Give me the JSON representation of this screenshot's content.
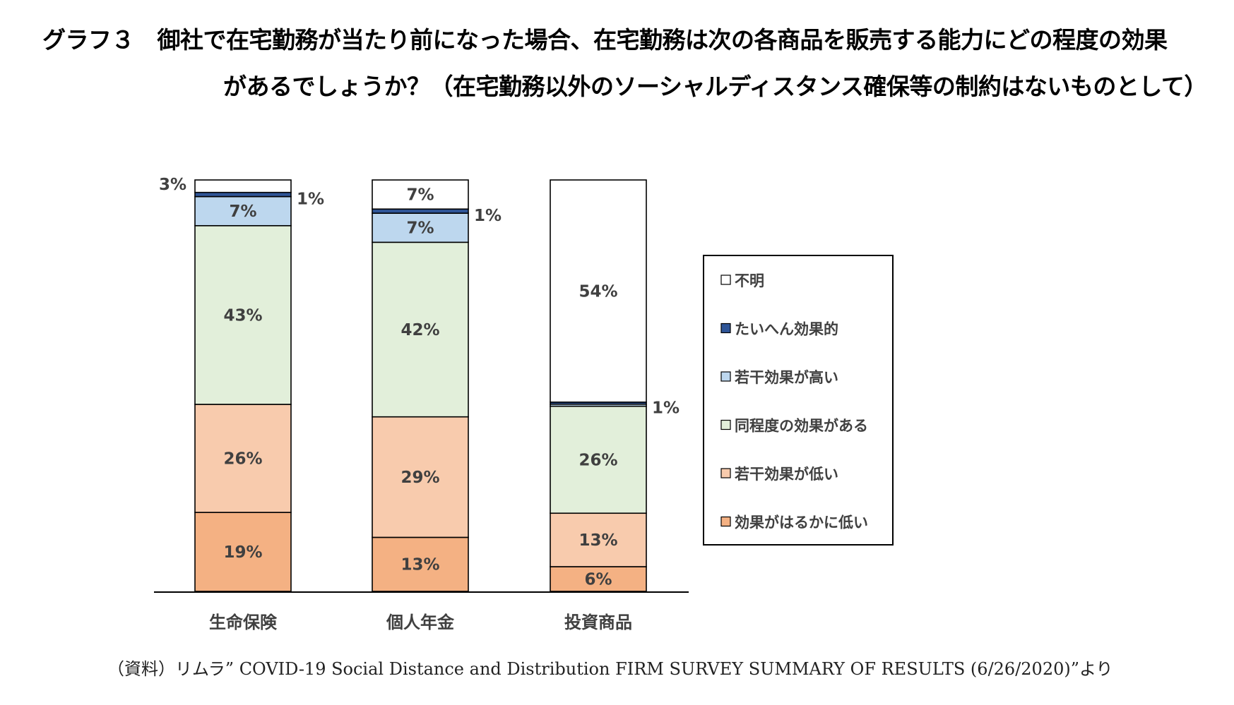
{
  "title_line1": "グラフ３　御社で在宅勤務が当たり前になった場合、在宅勤務は次の各商品を販売する能力にどの程度の効果",
  "title_line2": "があるでしょうか？（在宅勤務以外のソーシャルディスタンス確保等の制約はないものとして）",
  "source": "（資料）リムラ” COVID-19 Social Distance and Distribution FIRM SURVEY SUMMARY OF RESULTS (6/26/2020)”より",
  "chart_data": {
    "type": "bar",
    "stacked": true,
    "unit": "%",
    "categories": [
      "生命保険",
      "個人年金",
      "投資商品"
    ],
    "series": [
      {
        "name": "効果がはるかに低い",
        "color": "#F4B183",
        "values": [
          19,
          13,
          6
        ],
        "labels": [
          "19%",
          "13%",
          "6%"
        ]
      },
      {
        "name": "若干効果が低い",
        "color": "#F8CBAD",
        "values": [
          26,
          29,
          13
        ],
        "labels": [
          "26%",
          "29%",
          "13%"
        ]
      },
      {
        "name": "同程度の効果がある",
        "color": "#E2EFDA",
        "values": [
          43,
          42,
          26
        ],
        "labels": [
          "43%",
          "42%",
          "26%"
        ]
      },
      {
        "name": "若干効果が高い",
        "color": "#BDD7EE",
        "values": [
          7,
          7,
          0.5
        ],
        "labels": [
          "7%",
          "7%",
          ""
        ]
      },
      {
        "name": "たいへん効果的",
        "color": "#2F5597",
        "values": [
          1,
          1,
          0.5
        ],
        "labels": [
          "1%",
          "1%",
          "1%"
        ]
      },
      {
        "name": "不明",
        "color": "#FFFFFF",
        "values": [
          3,
          7,
          54
        ],
        "labels": [
          "3%",
          "7%",
          "54%"
        ]
      }
    ],
    "legend_order": [
      "不明",
      "たいへん効果的",
      "若干効果が高い",
      "同程度の効果がある",
      "若干効果が低い",
      "効果がはるかに低い"
    ],
    "legend_position": "right",
    "grid": false
  }
}
